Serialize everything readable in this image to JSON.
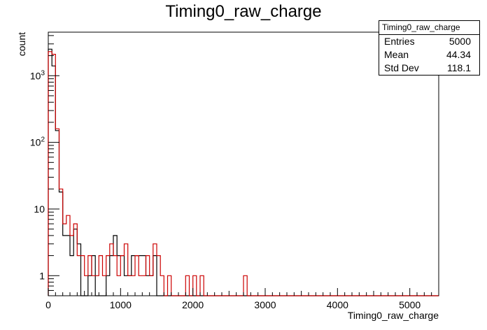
{
  "chart_data": {
    "type": "histogram",
    "title": "Timing0_raw_charge",
    "xlabel": "Timing0_raw_charge",
    "ylabel": "count",
    "xlim": [
      0,
      5400
    ],
    "ylim": [
      0.5,
      4500
    ],
    "yscale": "log",
    "x_ticks": [
      "0",
      "1000",
      "2000",
      "3000",
      "4000",
      "5000"
    ],
    "y_ticks": [
      "1",
      "10",
      "10^2",
      "10^3"
    ],
    "bin_width": 50,
    "grid": false,
    "series": [
      {
        "color": "#000000",
        "bins": [
          [
            0,
            2500
          ],
          [
            50,
            1400
          ],
          [
            100,
            150
          ],
          [
            150,
            18
          ],
          [
            200,
            4
          ],
          [
            250,
            4
          ],
          [
            300,
            2
          ],
          [
            350,
            5
          ],
          [
            400,
            3
          ],
          [
            550,
            1
          ],
          [
            600,
            2
          ],
          [
            800,
            1
          ],
          [
            850,
            2
          ],
          [
            900,
            4
          ],
          [
            950,
            2
          ],
          [
            1000,
            2
          ],
          [
            1050,
            1
          ],
          [
            1100,
            1
          ],
          [
            1150,
            2
          ],
          [
            1200,
            2
          ],
          [
            1250,
            2
          ],
          [
            1300,
            2
          ],
          [
            1350,
            1
          ],
          [
            1400,
            1
          ],
          [
            1450,
            2
          ]
        ]
      },
      {
        "color": "#cc0000",
        "bins": [
          [
            0,
            2300
          ],
          [
            50,
            2100
          ],
          [
            100,
            160
          ],
          [
            150,
            20
          ],
          [
            200,
            6
          ],
          [
            250,
            8
          ],
          [
            300,
            4
          ],
          [
            350,
            6
          ],
          [
            400,
            2
          ],
          [
            450,
            2
          ],
          [
            500,
            1
          ],
          [
            550,
            2
          ],
          [
            600,
            1
          ],
          [
            650,
            1
          ],
          [
            700,
            2
          ],
          [
            750,
            1
          ],
          [
            800,
            2
          ],
          [
            850,
            3
          ],
          [
            900,
            2
          ],
          [
            950,
            1
          ],
          [
            1000,
            2
          ],
          [
            1050,
            3
          ],
          [
            1100,
            1
          ],
          [
            1150,
            1
          ],
          [
            1200,
            2
          ],
          [
            1250,
            1
          ],
          [
            1300,
            1
          ],
          [
            1350,
            2
          ],
          [
            1400,
            1
          ],
          [
            1450,
            3
          ],
          [
            1500,
            2
          ],
          [
            1550,
            1
          ],
          [
            1650,
            1
          ],
          [
            1900,
            1
          ],
          [
            2000,
            1
          ],
          [
            2100,
            1
          ],
          [
            2700,
            1
          ]
        ]
      }
    ]
  },
  "stats": {
    "title": "Timing0_raw_charge",
    "rows": [
      {
        "label": "Entries",
        "value": "5000"
      },
      {
        "label": "Mean",
        "value": "44.34"
      },
      {
        "label": "Std Dev",
        "value": "118.1"
      }
    ]
  }
}
